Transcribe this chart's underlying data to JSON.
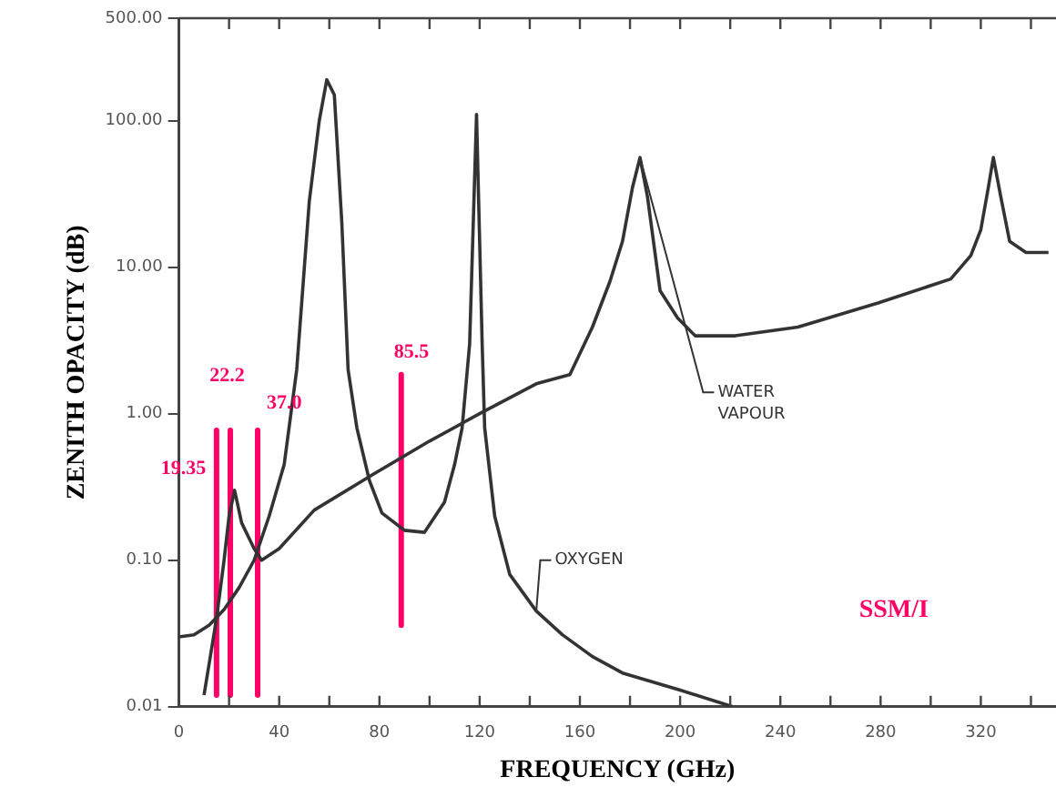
{
  "chart_data": {
    "type": "line",
    "xlabel": "FREQUENCY (GHz)",
    "ylabel": "ZENITH OPACITY (dB)",
    "log": "y",
    "grid": false,
    "legend": false,
    "marker": "none",
    "xlim": [
      0,
      350
    ],
    "ylim": [
      0.01,
      500
    ],
    "xticks": [
      0,
      {
        "value": 20,
        "label": null
      },
      40,
      {
        "value": 60,
        "label": null
      },
      80,
      {
        "value": 100,
        "label": null
      },
      120,
      {
        "value": 140,
        "label": null
      },
      160,
      {
        "value": 180,
        "label": null
      },
      200,
      {
        "value": 220,
        "label": null
      },
      240,
      {
        "value": 260,
        "label": null
      },
      280,
      {
        "value": 300,
        "label": null
      },
      320,
      {
        "value": 340,
        "label": null
      }
    ],
    "yticks": [
      {
        "value": 0.01,
        "label": "0.01"
      },
      {
        "value": 0.1,
        "label": "0.10"
      },
      {
        "value": 1,
        "label": "1.00"
      },
      {
        "value": 10,
        "label": "10.00"
      },
      {
        "value": 100,
        "label": "100.00"
      },
      {
        "value": 500,
        "label": "500.00"
      }
    ],
    "series": [
      {
        "name": "OXYGEN",
        "color": "#333333",
        "x": [
          0,
          6,
          12,
          18,
          24,
          30,
          36,
          42,
          47,
          52,
          56,
          59,
          62,
          65,
          67.5,
          71,
          76,
          81,
          90,
          98,
          106,
          110,
          113,
          116,
          118.75,
          121,
          122,
          126,
          132,
          142.6,
          153,
          165,
          177,
          200,
          221
        ],
        "values": [
          0.03,
          0.031,
          0.036,
          0.046,
          0.065,
          0.1,
          0.2,
          0.45,
          2,
          28,
          100,
          190,
          150,
          20,
          2,
          0.8,
          0.35,
          0.21,
          0.16,
          0.155,
          0.25,
          0.45,
          0.8,
          3,
          110,
          3,
          0.8,
          0.2,
          0.08,
          0.045,
          0.031,
          0.022,
          0.017,
          0.013,
          0.01
        ]
      },
      {
        "name": "WATER VAPOUR",
        "color": "#333333",
        "x": [
          10,
          15,
          18,
          20,
          22.2,
          25,
          30,
          33,
          40,
          54,
          78,
          100,
          120,
          142.6,
          156,
          165,
          172,
          177,
          181,
          184,
          187,
          192,
          199,
          206,
          222,
          247,
          279,
          308,
          316,
          320,
          323,
          325,
          328,
          331.5,
          338,
          347
        ],
        "values": [
          0.012,
          0.04,
          0.1,
          0.2,
          0.3,
          0.18,
          0.12,
          0.1,
          0.12,
          0.22,
          0.39,
          0.65,
          1,
          1.6,
          1.85,
          3.9,
          8,
          15,
          35,
          56,
          30,
          6.9,
          4.5,
          3.4,
          3.4,
          3.9,
          5.7,
          8.3,
          12,
          18,
          35,
          56,
          30,
          15,
          12.6,
          12.6
        ]
      },
      {
        "color": "#ff0066",
        "x": [
          15,
          15
        ],
        "values": [
          0.77,
          0.012
        ]
      },
      {
        "color": "#ff0066",
        "x": [
          20.5,
          20.5
        ],
        "values": [
          0.77,
          0.012
        ]
      },
      {
        "color": "#ff0066",
        "x": [
          31.4,
          31.4
        ],
        "values": [
          0.77,
          0.012
        ]
      },
      {
        "color": "#ff0066",
        "x": [
          88.7,
          88.7
        ],
        "values": [
          1.85,
          0.036
        ]
      }
    ],
    "annotations": [
      "19.35",
      "22.2",
      "37.0",
      "85.5",
      "SSM/I"
    ]
  }
}
